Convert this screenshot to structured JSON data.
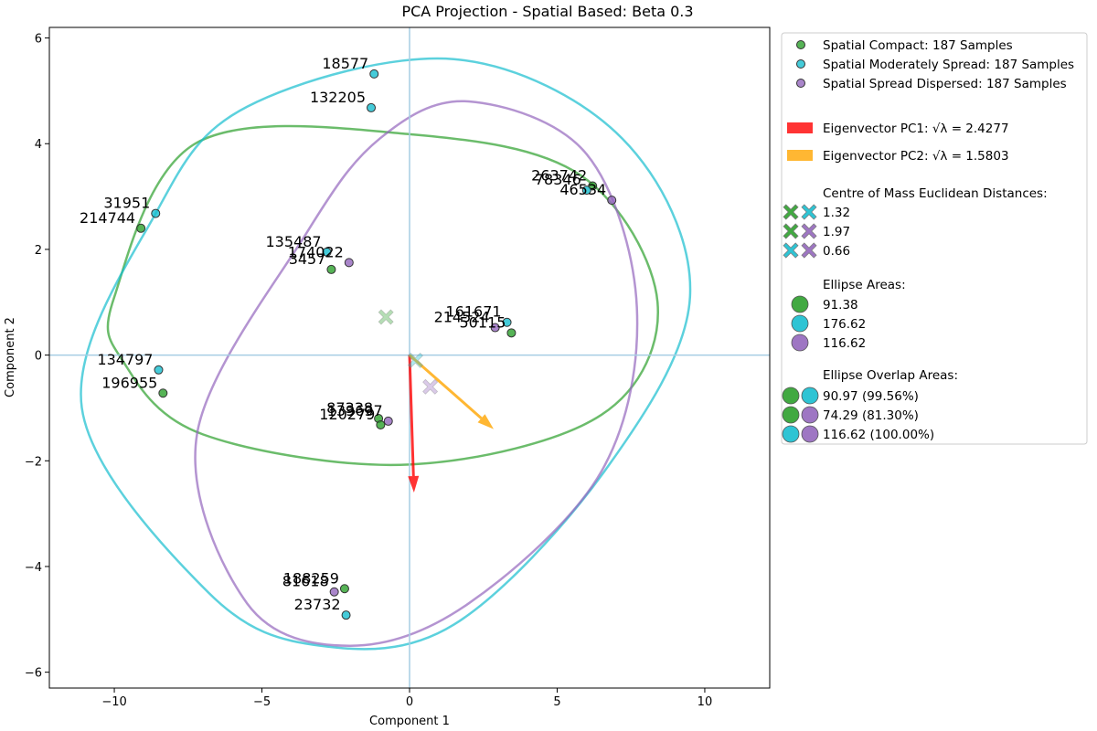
{
  "chart_data": {
    "type": "scatter",
    "title": "PCA Projection - Spatial Based: Beta 0.3",
    "xlabel": "Component 1",
    "ylabel": "Component 2",
    "xlim": [
      -12.2,
      12.2
    ],
    "ylim": [
      -6.3,
      6.2
    ],
    "xticks": [
      -10,
      -5,
      0,
      5,
      10
    ],
    "yticks": [
      -6,
      -4,
      -2,
      0,
      2,
      4,
      6
    ],
    "reference_lines": {
      "x": 0,
      "y": 0,
      "color": "#a6cee3"
    },
    "colors": {
      "compact": "#2ca02c",
      "moderate": "#17becf",
      "dispersed": "#9467bd",
      "pc1": "#ff0000",
      "pc2": "#ffa500"
    },
    "series": [
      {
        "name": "Spatial Compact: 187 Samples",
        "color": "#2ca02c",
        "points": [
          {
            "x": 6.2,
            "y": 3.2,
            "label": "263742"
          },
          {
            "x": -9.1,
            "y": 2.4,
            "label": "214744"
          },
          {
            "x": -2.65,
            "y": 1.62,
            "label": "3457"
          },
          {
            "x": 3.45,
            "y": 0.42,
            "label": "50115"
          },
          {
            "x": -8.35,
            "y": -0.72,
            "label": "196955"
          },
          {
            "x": -1.05,
            "y": -1.2,
            "label": "87338"
          },
          {
            "x": -0.98,
            "y": -1.32,
            "label": "120279"
          },
          {
            "x": -2.2,
            "y": -4.42,
            "label": "188259"
          }
        ]
      },
      {
        "name": "Spatial Moderately Spread: 187 Samples",
        "color": "#17becf",
        "points": [
          {
            "x": -1.2,
            "y": 5.32,
            "label": "18577"
          },
          {
            "x": -1.3,
            "y": 4.68,
            "label": "132205"
          },
          {
            "x": 6.0,
            "y": 3.12,
            "label": "78346"
          },
          {
            "x": -8.6,
            "y": 2.68,
            "label": "31951"
          },
          {
            "x": -2.8,
            "y": 1.95,
            "label": "135487"
          },
          {
            "x": 3.3,
            "y": 0.62,
            "label": "161671"
          },
          {
            "x": -8.5,
            "y": -0.28,
            "label": "134797"
          },
          {
            "x": -2.15,
            "y": -4.92,
            "label": "23732"
          }
        ]
      },
      {
        "name": "Spatial Spread Dispersed: 187 Samples",
        "color": "#9467bd",
        "points": [
          {
            "x": 6.85,
            "y": 2.93,
            "label": "46534"
          },
          {
            "x": -2.05,
            "y": 1.75,
            "label": "174022"
          },
          {
            "x": 2.9,
            "y": 0.52,
            "label": "214524"
          },
          {
            "x": -0.72,
            "y": -1.25,
            "label": "139697"
          },
          {
            "x": -2.55,
            "y": -4.48,
            "label": "81618"
          }
        ]
      }
    ],
    "centroids": [
      {
        "x": -0.8,
        "y": 0.72,
        "color": "#2ca02c"
      },
      {
        "x": 0.2,
        "y": -0.1,
        "color": "#17becf"
      },
      {
        "x": 0.7,
        "y": -0.6,
        "color": "#9467bd"
      }
    ],
    "ellipses": [
      {
        "color": "#2ca02c",
        "points": [
          [
            -7.2,
            4.02
          ],
          [
            -10.0,
            1.1
          ],
          [
            -9.7,
            -0.12
          ],
          [
            -7.0,
            -1.5
          ],
          [
            0,
            -2.07
          ],
          [
            6.5,
            -1.13
          ],
          [
            8.4,
            1.0
          ],
          [
            5.8,
            3.4
          ],
          [
            0,
            4.18
          ],
          [
            -7.2,
            4.02
          ]
        ]
      },
      {
        "color": "#17becf",
        "points": [
          [
            -8.6,
            2.68
          ],
          [
            -11.1,
            -1.0
          ],
          [
            -6.8,
            -4.5
          ],
          [
            -3.0,
            -5.5
          ],
          [
            1.5,
            -5.1
          ],
          [
            6.6,
            -2.2
          ],
          [
            9.5,
            1.1
          ],
          [
            7.2,
            4.1
          ],
          [
            1.5,
            5.6
          ],
          [
            -5.5,
            4.7
          ],
          [
            -8.6,
            2.68
          ]
        ]
      },
      {
        "color": "#9467bd",
        "points": [
          [
            -3.5,
            2.3
          ],
          [
            -7.2,
            -1.5
          ],
          [
            -5.5,
            -4.7
          ],
          [
            -2.0,
            -5.5
          ],
          [
            2.0,
            -4.7
          ],
          [
            6.5,
            -2.2
          ],
          [
            7.7,
            0.9
          ],
          [
            6.0,
            3.8
          ],
          [
            2.0,
            4.8
          ],
          [
            -1.0,
            4.1
          ],
          [
            -3.5,
            2.3
          ]
        ]
      }
    ],
    "eigenvectors": [
      {
        "label": "Eigenvector PC1: √λ = 2.4277",
        "color": "#ff0000",
        "from": [
          0,
          0
        ],
        "to": [
          0.15,
          -2.6
        ]
      },
      {
        "label": "Eigenvector PC2: √λ = 1.5803",
        "color": "#ffa500",
        "from": [
          0,
          0
        ],
        "to": [
          2.85,
          -1.4
        ]
      }
    ],
    "legend": {
      "placement": "outside-right",
      "distances_title": "Centre of Mass Euclidean Distances:",
      "distances": [
        {
          "value": "1.32",
          "pair": [
            "#2ca02c",
            "#17becf"
          ]
        },
        {
          "value": "1.97",
          "pair": [
            "#2ca02c",
            "#9467bd"
          ]
        },
        {
          "value": "0.66",
          "pair": [
            "#17becf",
            "#9467bd"
          ]
        }
      ],
      "areas_title": "Ellipse Areas:",
      "areas": [
        {
          "value": "91.38",
          "color": "#2ca02c"
        },
        {
          "value": "176.62",
          "color": "#17becf"
        },
        {
          "value": "116.62",
          "color": "#9467bd"
        }
      ],
      "overlaps_title": "Ellipse Overlap Areas:",
      "overlaps": [
        {
          "value": "90.97 (99.56%)",
          "pair": [
            "#2ca02c",
            "#17becf"
          ]
        },
        {
          "value": "74.29 (81.30%)",
          "pair": [
            "#2ca02c",
            "#9467bd"
          ]
        },
        {
          "value": "116.62 (100.00%)",
          "pair": [
            "#17becf",
            "#9467bd"
          ]
        }
      ]
    }
  }
}
